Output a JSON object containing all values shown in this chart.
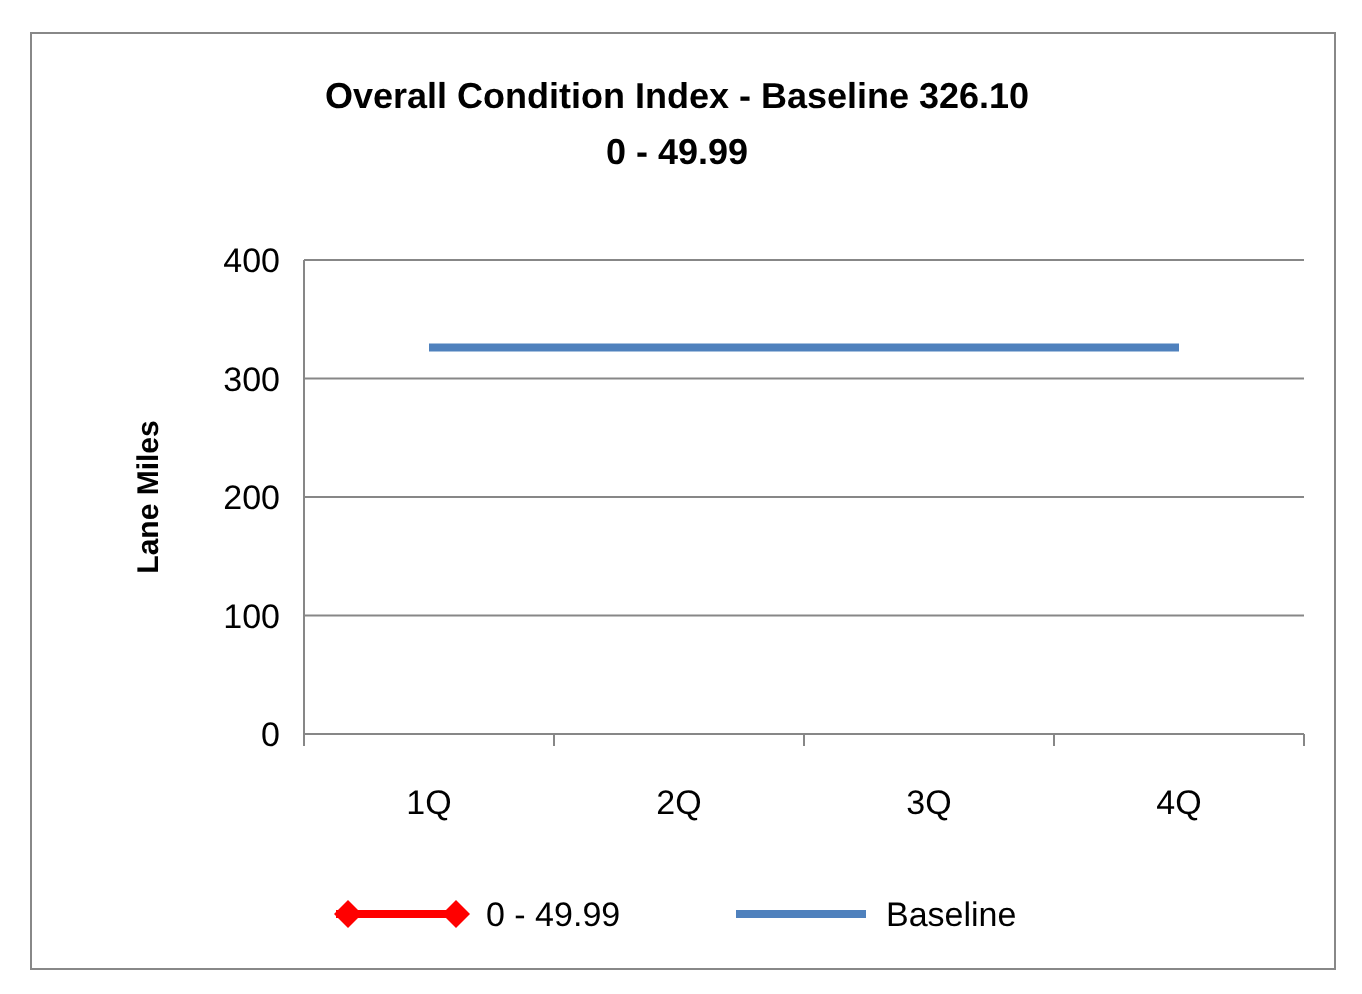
{
  "chart_data": {
    "type": "line",
    "title": "Overall Condition Index - Baseline 326.10",
    "subtitle": "0 - 49.99",
    "ylabel": "Lane Miles",
    "categories": [
      "1Q",
      "2Q",
      "3Q",
      "4Q"
    ],
    "series": [
      {
        "name": "0 - 49.99",
        "color": "#ff0000",
        "marker": "diamond",
        "values": [
          null,
          null,
          null,
          null
        ]
      },
      {
        "name": "Baseline",
        "color": "#4f81bd",
        "marker": "none",
        "values": [
          326.1,
          326.1,
          326.1,
          326.1
        ]
      }
    ],
    "ylim": [
      0,
      400
    ],
    "yticks": [
      0,
      100,
      200,
      300,
      400
    ],
    "grid": "y",
    "legend": "bottom",
    "line_style": "solid"
  }
}
